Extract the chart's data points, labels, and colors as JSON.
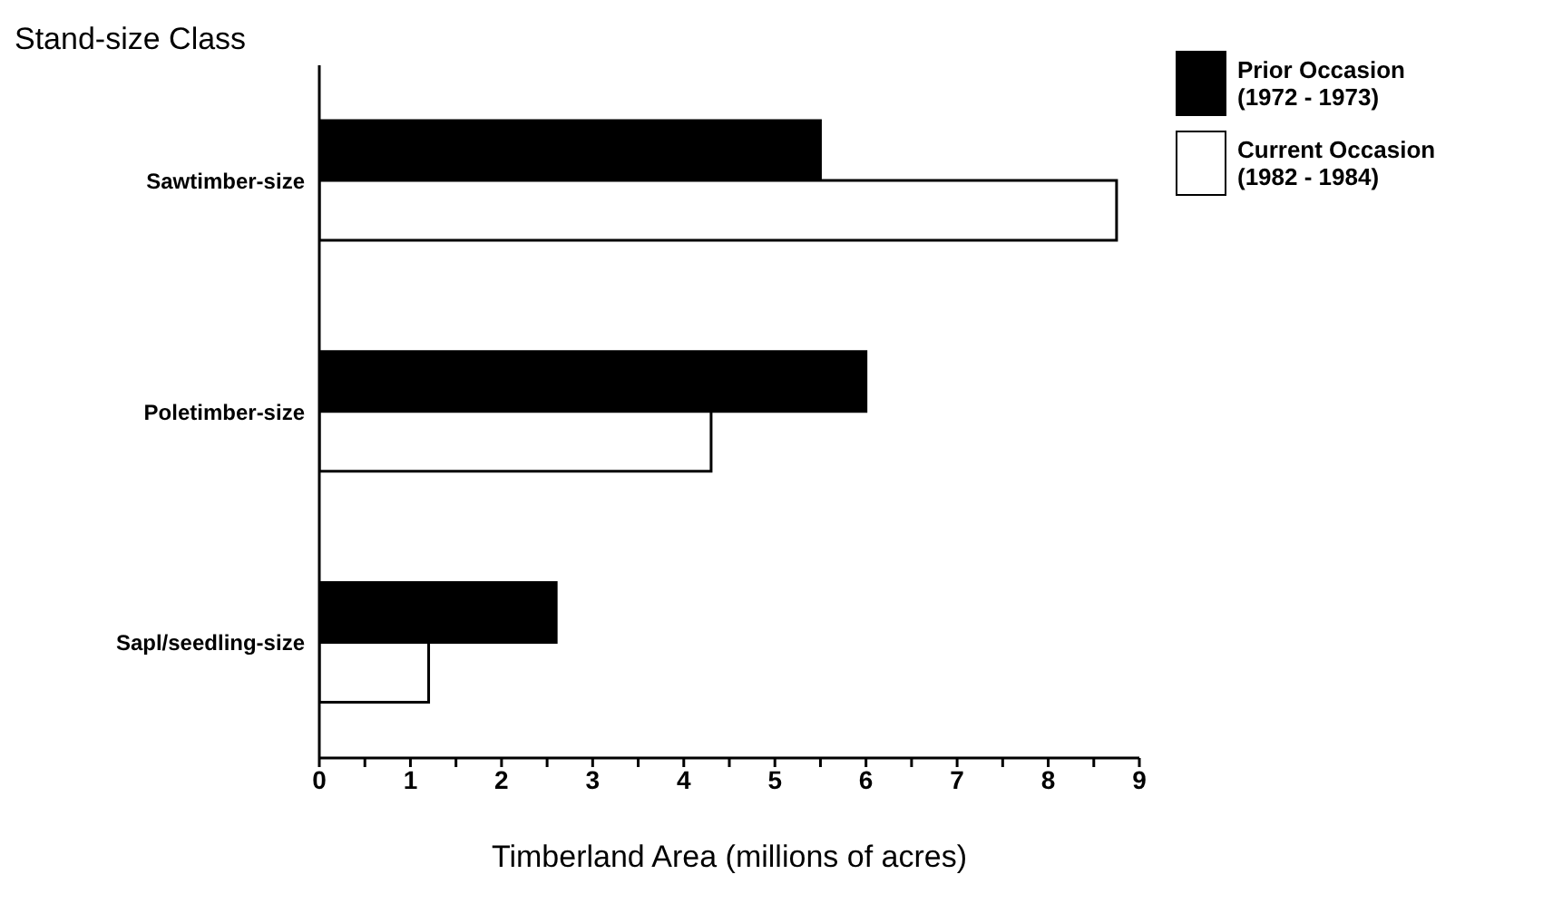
{
  "chart_data": {
    "type": "bar",
    "orientation": "horizontal",
    "ylabel": "Stand-size Class",
    "xlabel": "Timberland Area (millions of acres)",
    "categories": [
      "Sawtimber-size",
      "Poletimber-size",
      "Sapl/seedling-size"
    ],
    "series": [
      {
        "name": "Prior Occasion (1972 - 1973)",
        "color": "#000000",
        "values": [
          5.5,
          6.0,
          2.6
        ]
      },
      {
        "name": "Current Occasion (1982 - 1984)",
        "color": "#ffffff",
        "values": [
          8.75,
          4.3,
          1.2
        ]
      }
    ],
    "xlim": [
      0,
      9
    ],
    "xticks": [
      0,
      {
        "value": 0.5,
        "label": null
      },
      1,
      {
        "value": 1.5,
        "label": null
      },
      2,
      {
        "value": 2.5,
        "label": null
      },
      3,
      {
        "value": 3.5,
        "label": null
      },
      4,
      {
        "value": 4.5,
        "label": null
      },
      5,
      {
        "value": 5.5,
        "label": null
      },
      6,
      {
        "value": 6.5,
        "label": null
      },
      7,
      {
        "value": 7.5,
        "label": null
      },
      8,
      {
        "value": 8.5,
        "label": null
      },
      9
    ],
    "grid": false,
    "legend": "top right"
  }
}
